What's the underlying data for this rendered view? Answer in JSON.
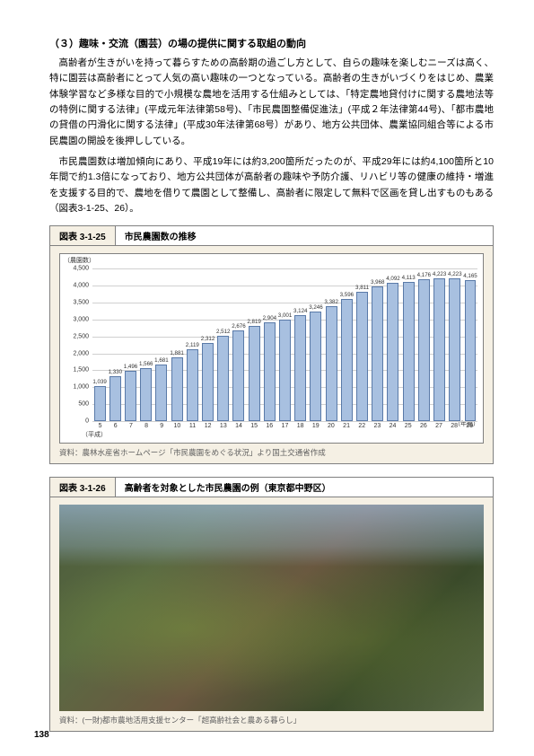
{
  "heading": "（３）趣味・交流（園芸）の場の提供に関する取組の動向",
  "para1": "高齢者が生きがいを持って暮らすための高齢期の過ごし方として、自らの趣味を楽しむニーズは高く、特に園芸は高齢者にとって人気の高い趣味の一つとなっている。高齢者の生きがいづくりをはじめ、農業体験学習など多様な目的で小規模な農地を活用する仕組みとしては、「特定農地貸付けに関する農地法等の特例に関する法律」(平成元年法律第58号)、「市民農園整備促進法」(平成２年法律第44号)、「都市農地の貸借の円滑化に関する法律」(平成30年法律第68号）があり、地方公共団体、農業協同組合等による市民農園の開設を後押ししている。",
  "para2": "市民農園数は増加傾向にあり、平成19年には約3,200箇所だったのが、平成29年には約4,100箇所と10年間で約1.3倍になっており、地方公共団体が高齢者の趣味や予防介護、リハビリ等の健康の維持・増進を支援する目的で、農地を借りて農園として整備し、高齢者に限定して無料で区画を貸し出すものもある（図表3-1-25、26）。",
  "fig25": {
    "tag": "図表 3-1-25",
    "title": "市民農園数の推移",
    "y_axis_label": "（農園数）",
    "x_right_label": "（年度）",
    "x_left_label": "（平成）",
    "ymax": 4500,
    "yticks": [
      0,
      500,
      1000,
      1500,
      2000,
      2500,
      3000,
      3500,
      4000,
      4500
    ],
    "categories": [
      "5",
      "6",
      "7",
      "8",
      "9",
      "10",
      "11",
      "12",
      "13",
      "14",
      "15",
      "16",
      "17",
      "18",
      "19",
      "20",
      "21",
      "22",
      "23",
      "24",
      "25",
      "26",
      "27",
      "28",
      "29"
    ],
    "values": [
      1039,
      1330,
      1496,
      1566,
      1681,
      1881,
      2119,
      2312,
      2512,
      2676,
      2819,
      2904,
      3001,
      3124,
      3246,
      3382,
      3596,
      3811,
      3968,
      4092,
      4113,
      4176,
      4223,
      4223,
      4165
    ],
    "bar_color": "#a8c0e0",
    "bar_border": "#5a7aa8",
    "grid_color": "#d0d0d0",
    "bg_color": "#ffffff",
    "panel_bg": "#f5f0e4",
    "source": "資料：農林水産省ホームページ「市民農園をめぐる状況」より国土交通省作成"
  },
  "fig26": {
    "tag": "図表 3-1-26",
    "title": "高齢者を対象とした市民農園の例（東京都中野区）",
    "source": "資料：(一財)都市農地活用支援センター「超高齢社会と農ある暮らし」"
  },
  "page_number": "138"
}
